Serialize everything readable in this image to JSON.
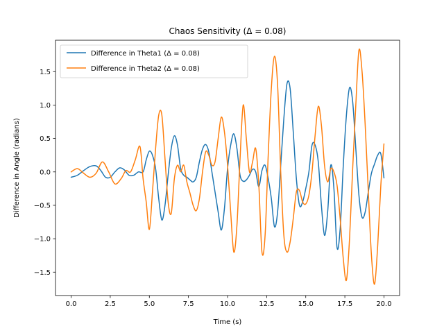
{
  "chart_data": {
    "type": "line",
    "title": "Chaos Sensitivity (Δ = 0.08)",
    "xlabel": "Time (s)",
    "ylabel": "Difference in Angle (radians)",
    "xlim": [
      -1.0,
      21.0
    ],
    "ylim": [
      -1.85,
      1.97
    ],
    "xticks": [
      0.0,
      2.5,
      5.0,
      7.5,
      10.0,
      12.5,
      15.0,
      17.5,
      20.0
    ],
    "xtick_labels": [
      "0.0",
      "2.5",
      "5.0",
      "7.5",
      "10.0",
      "12.5",
      "15.0",
      "17.5",
      "20.0"
    ],
    "yticks": [
      -1.5,
      -1.0,
      -0.5,
      0.0,
      0.5,
      1.0,
      1.5
    ],
    "ytick_labels": [
      "−1.5",
      "−1.0",
      "−0.5",
      "0.0",
      "0.5",
      "1.0",
      "1.5"
    ],
    "grid": false,
    "legend": "top-left",
    "series": [
      {
        "name": "Difference in Theta1 (Δ = 0.08)",
        "color": "#1f77b4",
        "x": [
          0,
          0.4,
          0.8,
          1.2,
          1.6,
          1.9,
          2.2,
          2.5,
          2.8,
          3.1,
          3.4,
          3.7,
          4.0,
          4.3,
          4.6,
          4.8,
          5.0,
          5.2,
          5.4,
          5.6,
          5.8,
          6.0,
          6.2,
          6.4,
          6.6,
          6.8,
          7.0,
          7.2,
          7.4,
          7.6,
          7.8,
          8.0,
          8.2,
          8.4,
          8.6,
          8.8,
          9.0,
          9.2,
          9.4,
          9.6,
          9.8,
          10.0,
          10.2,
          10.4,
          10.6,
          10.8,
          11.0,
          11.2,
          11.4,
          11.6,
          11.8,
          12.0,
          12.2,
          12.4,
          12.6,
          12.8,
          13.0,
          13.2,
          13.4,
          13.6,
          13.8,
          14.0,
          14.2,
          14.4,
          14.6,
          14.8,
          15.0,
          15.2,
          15.4,
          15.6,
          15.8,
          16.0,
          16.2,
          16.4,
          16.6,
          16.8,
          17.0,
          17.2,
          17.4,
          17.6,
          17.8,
          18.0,
          18.2,
          18.4,
          18.6,
          18.8,
          19.0,
          19.2,
          19.4,
          19.6,
          19.8,
          20.0
        ],
        "y": [
          -0.08,
          -0.05,
          0.02,
          0.08,
          0.09,
          0.02,
          -0.08,
          -0.08,
          0.0,
          0.06,
          0.03,
          -0.05,
          -0.05,
          0.0,
          0.0,
          0.18,
          0.31,
          0.25,
          0.05,
          -0.4,
          -0.72,
          -0.5,
          -0.05,
          0.35,
          0.54,
          0.4,
          0.05,
          -0.05,
          -0.08,
          -0.12,
          -0.15,
          -0.08,
          0.15,
          0.34,
          0.41,
          0.3,
          0.0,
          -0.3,
          -0.6,
          -0.87,
          -0.55,
          0.05,
          0.4,
          0.57,
          0.35,
          -0.05,
          -0.14,
          -0.12,
          -0.05,
          0.04,
          0.0,
          -0.22,
          0.02,
          0.1,
          -0.1,
          -0.4,
          -0.82,
          -0.6,
          0.1,
          0.8,
          1.32,
          1.25,
          0.6,
          -0.1,
          -0.5,
          -0.45,
          -0.25,
          0.0,
          0.4,
          0.4,
          0.15,
          -0.5,
          -0.95,
          -0.6,
          0.1,
          -0.25,
          -1.13,
          -0.85,
          0.1,
          0.85,
          1.26,
          1.05,
          0.35,
          -0.35,
          -0.68,
          -0.6,
          -0.3,
          -0.02,
          0.12,
          0.25,
          0.27,
          -0.09
        ]
      },
      {
        "name": "Difference in Theta2 (Δ = 0.08)",
        "color": "#ff7f0e",
        "x": [
          0,
          0.4,
          0.8,
          1.2,
          1.6,
          2.0,
          2.4,
          2.8,
          3.2,
          3.5,
          3.8,
          4.1,
          4.4,
          4.6,
          4.8,
          5.0,
          5.2,
          5.4,
          5.6,
          5.8,
          6.0,
          6.2,
          6.4,
          6.6,
          6.8,
          7.0,
          7.2,
          7.4,
          7.6,
          7.8,
          8.0,
          8.2,
          8.4,
          8.6,
          8.8,
          9.0,
          9.2,
          9.4,
          9.6,
          9.8,
          10.0,
          10.2,
          10.4,
          10.6,
          10.8,
          11.0,
          11.2,
          11.4,
          11.6,
          11.8,
          12.0,
          12.2,
          12.4,
          12.6,
          12.8,
          13.0,
          13.2,
          13.4,
          13.6,
          13.8,
          14.0,
          14.2,
          14.4,
          14.6,
          14.8,
          15.0,
          15.2,
          15.4,
          15.6,
          15.8,
          16.0,
          16.2,
          16.4,
          16.6,
          16.8,
          17.0,
          17.2,
          17.4,
          17.6,
          17.8,
          18.0,
          18.2,
          18.4,
          18.6,
          18.8,
          19.0,
          19.2,
          19.4,
          19.6,
          19.8,
          20.0
        ],
        "y": [
          0.0,
          0.05,
          -0.02,
          -0.08,
          -0.02,
          0.15,
          0.0,
          -0.18,
          -0.1,
          0.02,
          0.0,
          0.18,
          0.38,
          -0.1,
          -0.45,
          -0.86,
          -0.3,
          0.35,
          0.85,
          0.85,
          0.2,
          -0.45,
          -0.62,
          -0.1,
          0.1,
          0.0,
          0.1,
          -0.15,
          -0.32,
          -0.5,
          -0.58,
          -0.4,
          0.0,
          0.3,
          0.25,
          0.1,
          0.15,
          0.5,
          0.82,
          0.6,
          0.1,
          -0.6,
          -1.2,
          -0.8,
          0.2,
          1.0,
          0.5,
          0.0,
          0.15,
          0.35,
          -0.2,
          -1.2,
          -0.95,
          0.25,
          1.25,
          1.73,
          1.3,
          0.0,
          -0.95,
          -1.2,
          -1.05,
          -0.7,
          -0.3,
          -0.28,
          -0.45,
          -0.48,
          -0.35,
          0.0,
          0.55,
          0.98,
          0.7,
          0.1,
          -0.15,
          0.05,
          0.0,
          -0.2,
          -0.7,
          -1.3,
          -1.62,
          -1.0,
          0.05,
          1.0,
          1.82,
          1.5,
          0.7,
          -0.3,
          -1.25,
          -1.68,
          -1.1,
          -0.2,
          0.42
        ]
      }
    ]
  }
}
